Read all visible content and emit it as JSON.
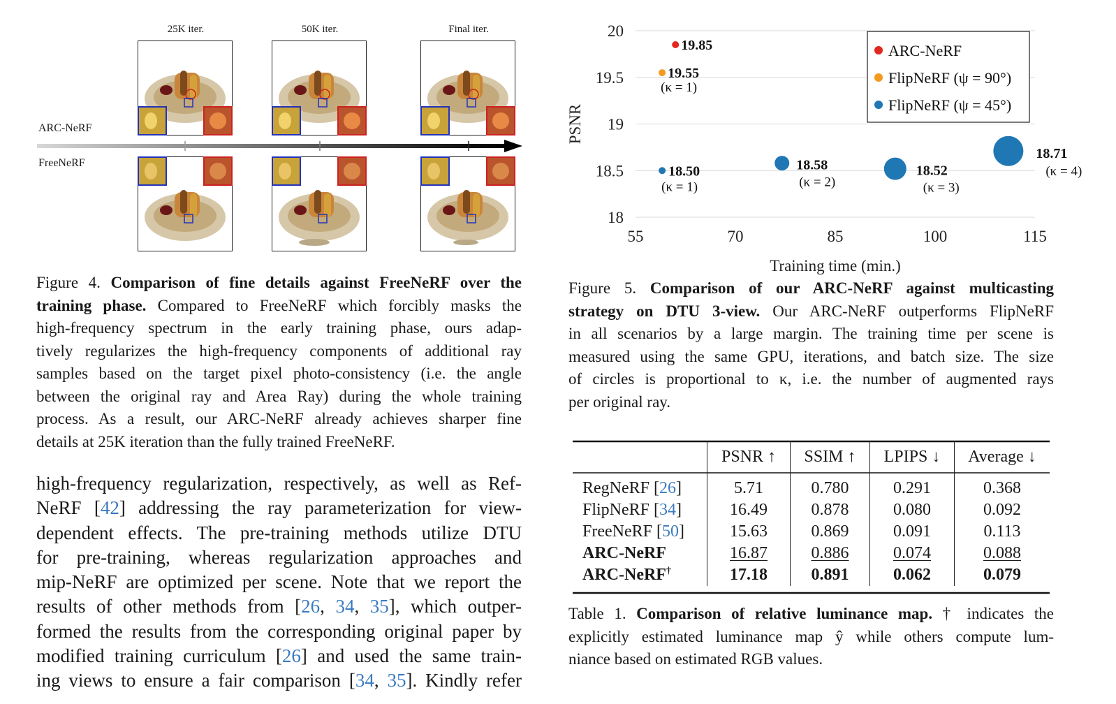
{
  "figure4": {
    "iter_labels": [
      "25K iter.",
      "50K iter.",
      "Final iter."
    ],
    "row_top_label": "ARC-NeRF",
    "row_bottom_label": "FreeNeRF",
    "caption_lines": [
      {
        "prefix": "Figure 4. ",
        "bold": "Comparison of fine details against FreeNeRF over the",
        "rest": ""
      },
      {
        "prefix": "",
        "bold": "training phase.",
        "rest": " Compared to FreeNeRF which forcibly masks the"
      },
      {
        "prefix": "",
        "bold": "",
        "rest": "high-frequency spectrum in the early training phase, ours adap-"
      },
      {
        "prefix": "",
        "bold": "",
        "rest": "tively regularizes the high-frequency components of additional ray"
      },
      {
        "prefix": "",
        "bold": "",
        "rest": "samples based on the target pixel photo-consistency (i.e. the angle"
      },
      {
        "prefix": "",
        "bold": "",
        "rest": "between the original ray and Area Ray) during the whole training"
      },
      {
        "prefix": "",
        "bold": "",
        "rest": "process. As a result, our ARC-NeRF already achieves sharper fine"
      },
      {
        "prefix": "",
        "bold": "",
        "rest": "details at 25K iteration than the fully trained FreeNeRF."
      }
    ]
  },
  "figure5": {
    "caption_lines": [
      {
        "prefix": "Figure 5. ",
        "bold": "Comparison of our ARC-NeRF against multicasting",
        "rest": ""
      },
      {
        "prefix": "",
        "bold": "strategy on DTU 3-view.",
        "rest": " Our ARC-NeRF outperforms FlipNeRF"
      },
      {
        "prefix": "",
        "bold": "",
        "rest": "in all scenarios by a large margin. The training time per scene is"
      },
      {
        "prefix": "",
        "bold": "",
        "rest": "measured using the same GPU, iterations, and batch size. The size"
      },
      {
        "prefix": "",
        "bold": "",
        "rest": "of circles is proportional to κ, i.e. the number of augmented rays"
      },
      {
        "prefix": "",
        "bold": "",
        "rest": "per original ray."
      }
    ]
  },
  "chart_data": {
    "type": "scatter",
    "title": "",
    "xlabel": "Training time (min.)",
    "ylabel": "PSNR",
    "xlim": [
      55,
      115
    ],
    "ylim": [
      18,
      20
    ],
    "xticks": [
      "55",
      "70",
      "85",
      "100",
      "115"
    ],
    "yticks": [
      "18",
      "18.5",
      "19",
      "19.5",
      "20"
    ],
    "grid": "horizontal",
    "legend_position": "top-right",
    "series": [
      {
        "name": "ARC-NeRF",
        "color": "#e0281e",
        "points": [
          {
            "x": 61,
            "y": 19.85,
            "label": "19.85",
            "kappa_label": ""
          }
        ]
      },
      {
        "name": "FlipNeRF (ψ = 90°)",
        "color": "#f39a1f",
        "points": [
          {
            "x": 59,
            "y": 19.55,
            "label": "19.55",
            "kappa_label": "(κ = 1)"
          }
        ]
      },
      {
        "name": "FlipNeRF (ψ = 45°)",
        "color": "#1f77b4",
        "points": [
          {
            "x": 59,
            "y": 18.5,
            "label": "18.50",
            "kappa_label": "(κ = 1)",
            "kappa": 1
          },
          {
            "x": 77,
            "y": 18.58,
            "label": "18.58",
            "kappa_label": "(κ = 2)",
            "kappa": 2
          },
          {
            "x": 94,
            "y": 18.52,
            "label": "18.52",
            "kappa_label": "(κ = 3)",
            "kappa": 3
          },
          {
            "x": 111,
            "y": 18.71,
            "label": "18.71",
            "kappa_label": "(κ = 4)",
            "kappa": 4
          }
        ]
      }
    ]
  },
  "table1": {
    "headers": [
      "",
      "PSNR ↑",
      "SSIM ↑",
      "LPIPS ↓",
      "Average ↓"
    ],
    "rows": [
      {
        "name": "RegNeRF ",
        "ref": "26",
        "values": [
          "5.71",
          "0.780",
          "0.291",
          "0.368"
        ],
        "style": "normal"
      },
      {
        "name": "FlipNeRF ",
        "ref": "34",
        "values": [
          "16.49",
          "0.878",
          "0.080",
          "0.092"
        ],
        "style": "normal"
      },
      {
        "name": "FreeNeRF ",
        "ref": "50",
        "values": [
          "15.63",
          "0.869",
          "0.091",
          "0.113"
        ],
        "style": "normal"
      },
      {
        "name": "ARC-NeRF",
        "ref": "",
        "values": [
          "16.87",
          "0.886",
          "0.074",
          "0.088"
        ],
        "style": "underline"
      },
      {
        "name": "ARC-NeRF",
        "ref": "",
        "dagger": "†",
        "values": [
          "17.18",
          "0.891",
          "0.062",
          "0.079"
        ],
        "style": "bold"
      }
    ],
    "caption": {
      "prefix": "Table 1. ",
      "bold": "Comparison of relative luminance map.",
      "lines": [
        " † indicates the",
        "explicitly estimated luminance map ŷ while others compute lum-",
        "niance based on estimated RGB values."
      ]
    }
  },
  "body_text": {
    "lines": [
      [
        {
          "t": "high-frequency regularization, respectively, as well as Ref-"
        }
      ],
      [
        {
          "t": "NeRF ["
        },
        {
          "t": "42",
          "link": true
        },
        {
          "t": "] addressing the ray parameterization for view-"
        }
      ],
      [
        {
          "t": "dependent effects. The pre-training methods utilize DTU"
        }
      ],
      [
        {
          "t": "for pre-training, whereas regularization approaches and"
        }
      ],
      [
        {
          "t": "mip-NeRF are optimized per scene. Note that we report the"
        }
      ],
      [
        {
          "t": "results of other methods from ["
        },
        {
          "t": "26",
          "link": true
        },
        {
          "t": ", "
        },
        {
          "t": "34",
          "link": true
        },
        {
          "t": ", "
        },
        {
          "t": "35",
          "link": true
        },
        {
          "t": "], which outper-"
        }
      ],
      [
        {
          "t": "formed the results from the corresponding original paper by"
        }
      ],
      [
        {
          "t": "modified training curriculum ["
        },
        {
          "t": "26",
          "link": true
        },
        {
          "t": "] and used the same train-"
        }
      ],
      [
        {
          "t": "ing views to ensure a fair comparison ["
        },
        {
          "t": "34",
          "link": true
        },
        {
          "t": ", "
        },
        {
          "t": "35",
          "link": true
        },
        {
          "t": "]. Kindly refer"
        }
      ]
    ]
  }
}
